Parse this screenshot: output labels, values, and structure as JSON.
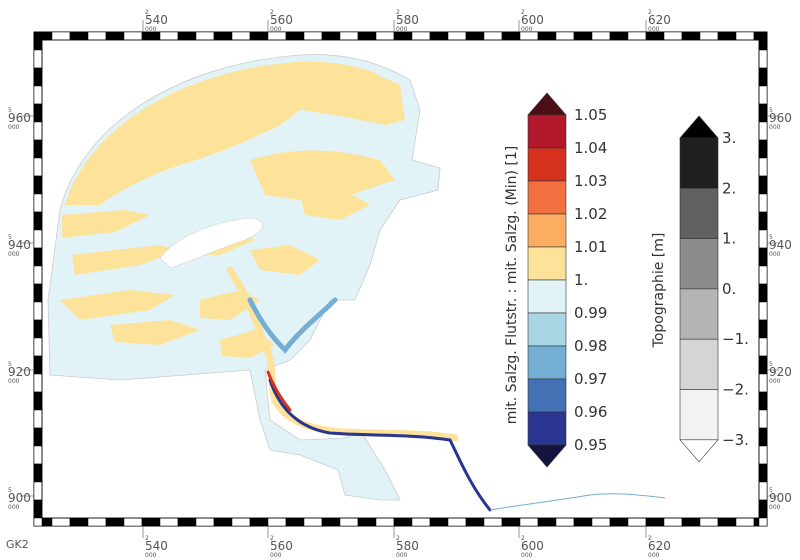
{
  "projection_label": "GK2",
  "top_ticks": [
    {
      "main": "540",
      "prefix": "2",
      "suffix": "000"
    },
    {
      "main": "560",
      "prefix": "2",
      "suffix": "000"
    },
    {
      "main": "580",
      "prefix": "2",
      "suffix": "000"
    },
    {
      "main": "600",
      "prefix": "2",
      "suffix": "000"
    },
    {
      "main": "620",
      "prefix": "2",
      "suffix": "000"
    }
  ],
  "side_ticks": [
    {
      "main": "960",
      "prefix": "5",
      "suffix": "000"
    },
    {
      "main": "940",
      "prefix": "5",
      "suffix": "000"
    },
    {
      "main": "920",
      "prefix": "5",
      "suffix": "000"
    },
    {
      "main": "900",
      "prefix": "5",
      "suffix": "000"
    }
  ],
  "ratio_legend": {
    "title": "mit. Salzg. Flutstr. : mit. Salzg. (Min) [1]",
    "labels": [
      "1.05",
      "1.04",
      "1.03",
      "1.02",
      "1.01",
      "1.",
      "0.99",
      "0.98",
      "0.97",
      "0.96",
      "0.95"
    ],
    "colors": [
      "#b2182b",
      "#d6301f",
      "#f0703f",
      "#fbae62",
      "#fde39a",
      "#e2f3f7",
      "#a9d5e5",
      "#74aed3",
      "#4272b4",
      "#2a3591"
    ],
    "over_color": "#4c0d14",
    "under_color": "#14143f"
  },
  "topo_legend": {
    "title": "Topographie [m]",
    "labels": [
      "3.",
      "2.",
      "1.",
      "0.",
      "−1.",
      "−2.",
      "−3."
    ],
    "colors": [
      "#1f1f1f",
      "#606060",
      "#8c8c8c",
      "#b4b4b4",
      "#d5d5d5",
      "#f2f2f2"
    ],
    "over_color": "#000000",
    "under_color": "#ffffff"
  },
  "map_colors": {
    "water": "#e2f3f7",
    "flat": "#fde39a",
    "channel_light": "#a9d5e5",
    "channel_mid": "#74aed3",
    "channel_dark": "#2a3591",
    "hot": "#d6301f",
    "land_gray": "#cccccc"
  }
}
